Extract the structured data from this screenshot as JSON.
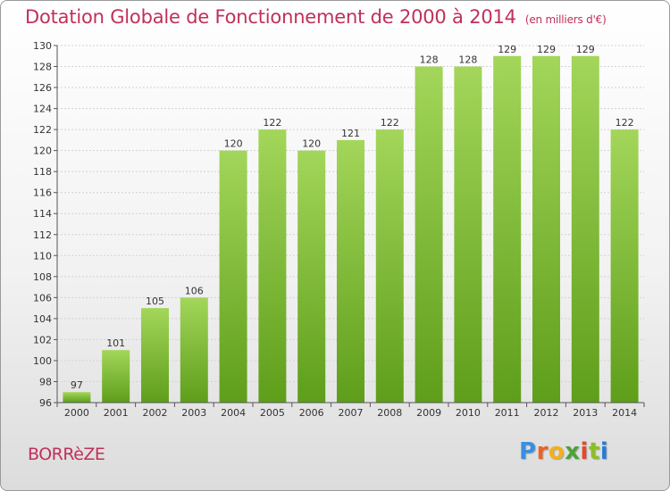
{
  "header": {
    "title": "Dotation Globale de Fonctionnement de 2000 à 2014",
    "subtitle": "(en milliers d'€)"
  },
  "footer": {
    "commune": "BORRèZE",
    "logo_text": "Proxiti"
  },
  "colors": {
    "title": "#c0305a",
    "bar_light": "#a3d65a",
    "bar_dark": "#5e9e1a",
    "logo": [
      "#3a8ee0",
      "#e8632a",
      "#f2b01e",
      "#49a33a",
      "#e04a2a",
      "#8bbf2a",
      "#2a7ad6"
    ]
  },
  "chart_data": {
    "type": "bar",
    "title": "Dotation Globale de Fonctionnement de 2000 à 2014",
    "subtitle": "(en milliers d'€)",
    "categories": [
      "2000",
      "2001",
      "2002",
      "2003",
      "2004",
      "2005",
      "2006",
      "2007",
      "2008",
      "2009",
      "2010",
      "2011",
      "2012",
      "2013",
      "2014"
    ],
    "values": [
      97,
      101,
      105,
      106,
      120,
      122,
      120,
      121,
      122,
      128,
      128,
      129,
      129,
      129,
      122
    ],
    "ylim": [
      96,
      130
    ],
    "yticks": [
      96,
      98,
      100,
      102,
      104,
      106,
      108,
      110,
      112,
      114,
      116,
      118,
      120,
      122,
      124,
      126,
      128,
      130
    ],
    "grid": true
  }
}
